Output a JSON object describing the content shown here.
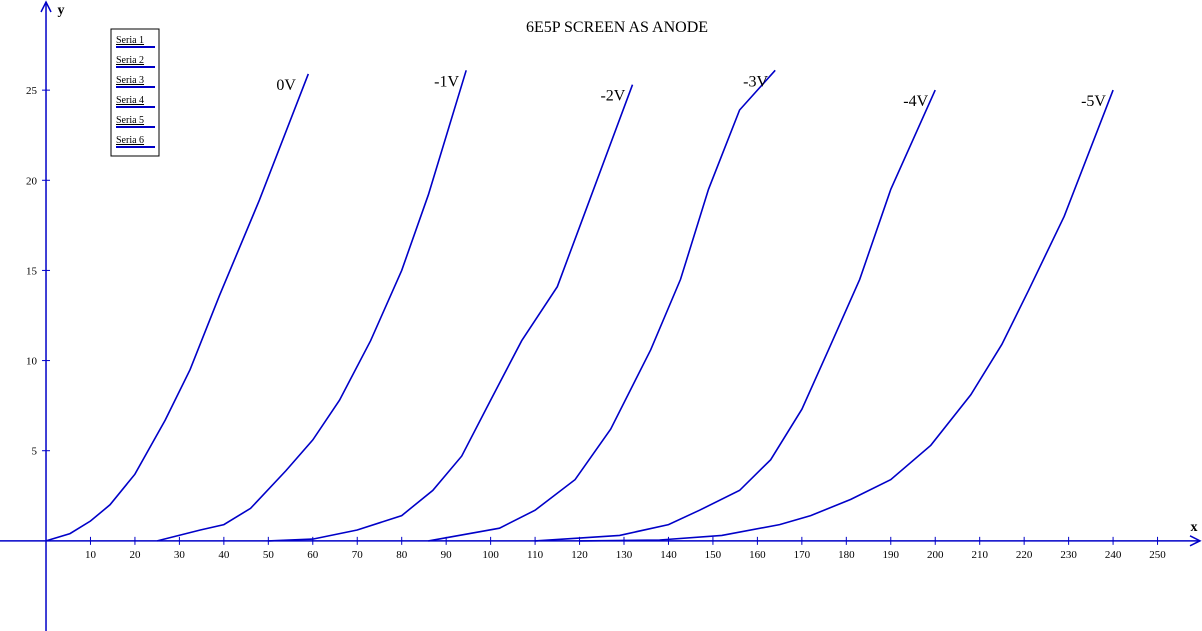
{
  "chart_data": {
    "type": "line",
    "title": "6E5P SCREEN AS ANODE",
    "x_label": "x",
    "y_label": "y",
    "xlim": [
      -10.35,
      260
    ],
    "ylim": [
      -5,
      30
    ],
    "xticks": [
      10,
      20,
      30,
      40,
      50,
      60,
      70,
      80,
      90,
      100,
      110,
      120,
      130,
      140,
      150,
      160,
      170,
      180,
      190,
      200,
      210,
      220,
      230,
      240,
      250
    ],
    "yticks": [
      5,
      10,
      15,
      20,
      25
    ],
    "legend": "top-left",
    "series": [
      {
        "name": "Seria 1",
        "color": "#0000c8",
        "annotation": "0V",
        "x": [
          0,
          5.4,
          10,
          14.4,
          20,
          26.8,
          32.4,
          39,
          48,
          59
        ],
        "values": [
          0,
          0.4,
          1.1,
          2,
          3.7,
          6.7,
          9.5,
          13.6,
          18.9,
          25.9
        ]
      },
      {
        "name": "Seria 2",
        "color": "#0000c8",
        "annotation": "-1V",
        "x": [
          25,
          34.7,
          40,
          46,
          54,
          60,
          66,
          73,
          80,
          86,
          94.5
        ],
        "values": [
          0,
          0.6,
          0.9,
          1.8,
          3.9,
          5.6,
          7.8,
          11.1,
          15,
          19.2,
          26.1
        ]
      },
      {
        "name": "Seria 3",
        "color": "#0000c8",
        "annotation": "-2V",
        "x": [
          50,
          60,
          70,
          80,
          87,
          93.5,
          100,
          107,
          115,
          120,
          131.9
        ],
        "values": [
          0,
          0.1,
          0.6,
          1.4,
          2.8,
          4.7,
          7.8,
          11.1,
          14.1,
          17.4,
          25.3
        ]
      },
      {
        "name": "Seria 4",
        "color": "#0000c8",
        "annotation": "-3V",
        "x": [
          86,
          102,
          110,
          119,
          127,
          136,
          142.7,
          149,
          156,
          164
        ],
        "values": [
          0,
          0.7,
          1.7,
          3.4,
          6.2,
          10.6,
          14.5,
          19.5,
          23.9,
          26.1
        ]
      },
      {
        "name": "Seria 5",
        "color": "#0000c8",
        "annotation": "-4V",
        "x": [
          110,
          129,
          140,
          147,
          156,
          163,
          170,
          176,
          183,
          190,
          200
        ],
        "values": [
          0,
          0.3,
          0.9,
          1.7,
          2.8,
          4.5,
          7.3,
          10.6,
          14.5,
          19.5,
          25
        ]
      },
      {
        "name": "Seria 6",
        "color": "#0000c8",
        "annotation": "-5V",
        "x": [
          120,
          138,
          152,
          165,
          172,
          181,
          190,
          199,
          208,
          215,
          221,
          229,
          240
        ],
        "values": [
          0,
          0.05,
          0.3,
          0.9,
          1.4,
          2.3,
          3.4,
          5.3,
          8.1,
          10.9,
          13.9,
          18,
          25
        ]
      }
    ]
  }
}
